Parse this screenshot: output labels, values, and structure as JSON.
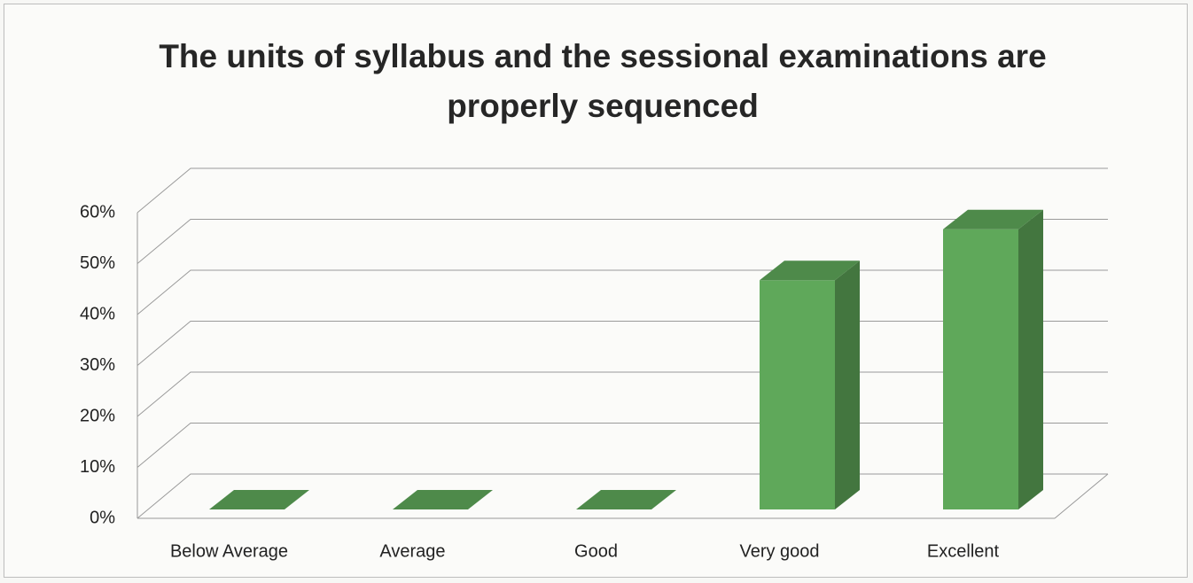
{
  "chart_data": {
    "type": "bar3d",
    "title": "The units of syllabus and the sessional examinations are properly sequenced",
    "categories": [
      "Below Average",
      "Average",
      "Good",
      "Very good",
      "Excellent"
    ],
    "values": [
      0,
      0,
      0,
      45,
      55
    ],
    "color": "#5fa85a",
    "ylim": [
      0,
      60
    ],
    "yticks": [
      {
        "value": 0,
        "label": "0%"
      },
      {
        "value": 10,
        "label": "10%"
      },
      {
        "value": 20,
        "label": "20%"
      },
      {
        "value": 30,
        "label": "30%"
      },
      {
        "value": 40,
        "label": "40%"
      },
      {
        "value": 50,
        "label": "50%"
      },
      {
        "value": 60,
        "label": "60%"
      }
    ],
    "grid": true
  }
}
